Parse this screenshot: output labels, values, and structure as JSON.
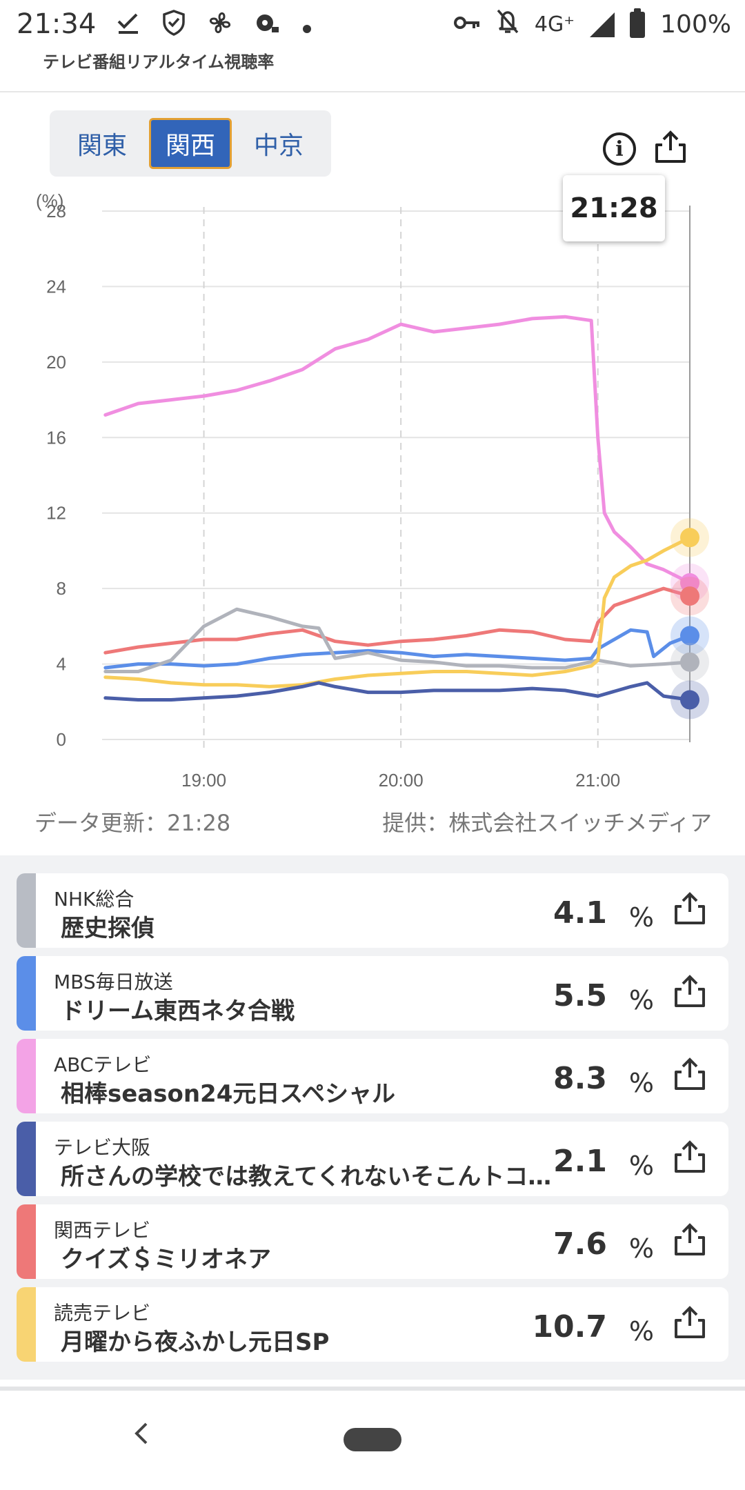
{
  "status_bar": {
    "time": "21:34",
    "network": "4G⁺",
    "battery": "100%",
    "left_icons": [
      "check-download-icon",
      "shield-icon",
      "fan-icon",
      "record-icon",
      "dot-icon"
    ],
    "right_icons": [
      "key-icon",
      "bell-off-icon",
      "signal-icon",
      "battery-icon"
    ]
  },
  "app": {
    "title": "テレビ番組リアルタイム視聴率"
  },
  "regions": {
    "tabs": [
      {
        "label": "関東",
        "active": false
      },
      {
        "label": "関西",
        "active": true
      },
      {
        "label": "中京",
        "active": false
      }
    ]
  },
  "chart": {
    "tooltip_time": "21:28",
    "data_updated": "データ更新：21:28",
    "provider": "提供：株式会社スイッチメディア"
  },
  "chart_data": {
    "type": "line",
    "ylabel": "(%)",
    "ylim": [
      0,
      28
    ],
    "yticks": [
      0,
      4,
      8,
      12,
      16,
      20,
      24,
      28
    ],
    "x_ticks": [
      "19:00",
      "20:00",
      "21:00"
    ],
    "x_range": [
      "18:29",
      "21:28"
    ],
    "grid": true,
    "series": [
      {
        "name": "ABCテレビ",
        "color": "#f08ee0",
        "points": [
          [
            "18:30",
            17.2
          ],
          [
            "18:40",
            17.8
          ],
          [
            "18:50",
            18.0
          ],
          [
            "19:00",
            18.2
          ],
          [
            "19:10",
            18.5
          ],
          [
            "19:20",
            19.0
          ],
          [
            "19:30",
            19.6
          ],
          [
            "19:40",
            20.7
          ],
          [
            "19:50",
            21.2
          ],
          [
            "20:00",
            22.0
          ],
          [
            "20:10",
            21.6
          ],
          [
            "20:20",
            21.8
          ],
          [
            "20:30",
            22.0
          ],
          [
            "20:40",
            22.3
          ],
          [
            "20:50",
            22.4
          ],
          [
            "20:58",
            22.2
          ],
          [
            "21:00",
            16.0
          ],
          [
            "21:02",
            12.0
          ],
          [
            "21:05",
            11.0
          ],
          [
            "21:10",
            10.2
          ],
          [
            "21:15",
            9.3
          ],
          [
            "21:20",
            9.0
          ],
          [
            "21:28",
            8.3
          ]
        ]
      },
      {
        "name": "関西テレビ",
        "color": "#ee7878",
        "points": [
          [
            "18:30",
            4.6
          ],
          [
            "18:40",
            4.9
          ],
          [
            "18:50",
            5.1
          ],
          [
            "19:00",
            5.3
          ],
          [
            "19:10",
            5.3
          ],
          [
            "19:20",
            5.6
          ],
          [
            "19:30",
            5.8
          ],
          [
            "19:40",
            5.2
          ],
          [
            "19:50",
            5.0
          ],
          [
            "20:00",
            5.2
          ],
          [
            "20:10",
            5.3
          ],
          [
            "20:20",
            5.5
          ],
          [
            "20:30",
            5.8
          ],
          [
            "20:40",
            5.7
          ],
          [
            "20:50",
            5.3
          ],
          [
            "20:58",
            5.2
          ],
          [
            "21:00",
            6.2
          ],
          [
            "21:05",
            7.1
          ],
          [
            "21:10",
            7.4
          ],
          [
            "21:15",
            7.7
          ],
          [
            "21:20",
            8.0
          ],
          [
            "21:28",
            7.6
          ]
        ]
      },
      {
        "name": "MBS毎日放送",
        "color": "#5b8ee8",
        "points": [
          [
            "18:30",
            3.8
          ],
          [
            "18:40",
            4.0
          ],
          [
            "18:50",
            4.0
          ],
          [
            "19:00",
            3.9
          ],
          [
            "19:10",
            4.0
          ],
          [
            "19:20",
            4.3
          ],
          [
            "19:30",
            4.5
          ],
          [
            "19:40",
            4.6
          ],
          [
            "19:50",
            4.7
          ],
          [
            "20:00",
            4.6
          ],
          [
            "20:10",
            4.4
          ],
          [
            "20:20",
            4.5
          ],
          [
            "20:30",
            4.4
          ],
          [
            "20:40",
            4.3
          ],
          [
            "20:50",
            4.2
          ],
          [
            "20:58",
            4.3
          ],
          [
            "21:00",
            4.8
          ],
          [
            "21:10",
            5.8
          ],
          [
            "21:15",
            5.7
          ],
          [
            "21:17",
            4.4
          ],
          [
            "21:22",
            5.1
          ],
          [
            "21:28",
            5.5
          ]
        ]
      },
      {
        "name": "NHK総合",
        "color": "#b0b3bb",
        "points": [
          [
            "18:30",
            3.6
          ],
          [
            "18:40",
            3.6
          ],
          [
            "18:50",
            4.2
          ],
          [
            "19:00",
            6.0
          ],
          [
            "19:10",
            6.9
          ],
          [
            "19:20",
            6.5
          ],
          [
            "19:30",
            6.0
          ],
          [
            "19:35",
            5.9
          ],
          [
            "19:40",
            4.3
          ],
          [
            "19:50",
            4.6
          ],
          [
            "20:00",
            4.2
          ],
          [
            "20:10",
            4.1
          ],
          [
            "20:20",
            3.9
          ],
          [
            "20:30",
            3.9
          ],
          [
            "20:40",
            3.8
          ],
          [
            "20:50",
            3.8
          ],
          [
            "21:00",
            4.2
          ],
          [
            "21:10",
            3.9
          ],
          [
            "21:20",
            4.0
          ],
          [
            "21:28",
            4.1
          ]
        ]
      },
      {
        "name": "読売テレビ",
        "color": "#f8cd5a",
        "points": [
          [
            "18:30",
            3.3
          ],
          [
            "18:40",
            3.2
          ],
          [
            "18:50",
            3.0
          ],
          [
            "19:00",
            2.9
          ],
          [
            "19:10",
            2.9
          ],
          [
            "19:20",
            2.8
          ],
          [
            "19:30",
            2.9
          ],
          [
            "19:40",
            3.2
          ],
          [
            "19:50",
            3.4
          ],
          [
            "20:00",
            3.5
          ],
          [
            "20:10",
            3.6
          ],
          [
            "20:20",
            3.6
          ],
          [
            "20:30",
            3.5
          ],
          [
            "20:40",
            3.4
          ],
          [
            "20:50",
            3.6
          ],
          [
            "20:58",
            3.9
          ],
          [
            "21:00",
            4.2
          ],
          [
            "21:02",
            7.5
          ],
          [
            "21:05",
            8.6
          ],
          [
            "21:10",
            9.2
          ],
          [
            "21:15",
            9.5
          ],
          [
            "21:20",
            10.0
          ],
          [
            "21:28",
            10.7
          ]
        ]
      },
      {
        "name": "テレビ大阪",
        "color": "#4a5ea8",
        "points": [
          [
            "18:30",
            2.2
          ],
          [
            "18:40",
            2.1
          ],
          [
            "18:50",
            2.1
          ],
          [
            "19:00",
            2.2
          ],
          [
            "19:10",
            2.3
          ],
          [
            "19:20",
            2.5
          ],
          [
            "19:30",
            2.8
          ],
          [
            "19:35",
            3.0
          ],
          [
            "19:40",
            2.8
          ],
          [
            "19:50",
            2.5
          ],
          [
            "20:00",
            2.5
          ],
          [
            "20:10",
            2.6
          ],
          [
            "20:20",
            2.6
          ],
          [
            "20:30",
            2.6
          ],
          [
            "20:40",
            2.7
          ],
          [
            "20:50",
            2.6
          ],
          [
            "21:00",
            2.3
          ],
          [
            "21:10",
            2.8
          ],
          [
            "21:15",
            3.0
          ],
          [
            "21:20",
            2.3
          ],
          [
            "21:28",
            2.1
          ]
        ]
      }
    ]
  },
  "channels": [
    {
      "station": "NHK総合",
      "program": "歴史探偵",
      "rating": "4.1",
      "unit": "%",
      "color": "#b8bcc4"
    },
    {
      "station": "MBS毎日放送",
      "program": "ドリーム東西ネタ合戦",
      "rating": "5.5",
      "unit": "%",
      "color": "#5b8ee8"
    },
    {
      "station": "ABCテレビ",
      "program": "相棒season24元日スペシャル",
      "rating": "8.3",
      "unit": "%",
      "color": "#f3a3e6"
    },
    {
      "station": "テレビ大阪",
      "program": "所さんの学校では教えてくれないそこんトコロ！",
      "rating": "2.1",
      "unit": "%",
      "color": "#4a5ea8"
    },
    {
      "station": "関西テレビ",
      "program": "クイズ＄ミリオネア",
      "rating": "7.6",
      "unit": "%",
      "color": "#ee7878"
    },
    {
      "station": "読売テレビ",
      "program": "月曜から夜ふかし元日SP",
      "rating": "10.7",
      "unit": "%",
      "color": "#f8d473"
    }
  ],
  "nav": {
    "icons": [
      "back-icon",
      "home-pill-icon"
    ]
  }
}
